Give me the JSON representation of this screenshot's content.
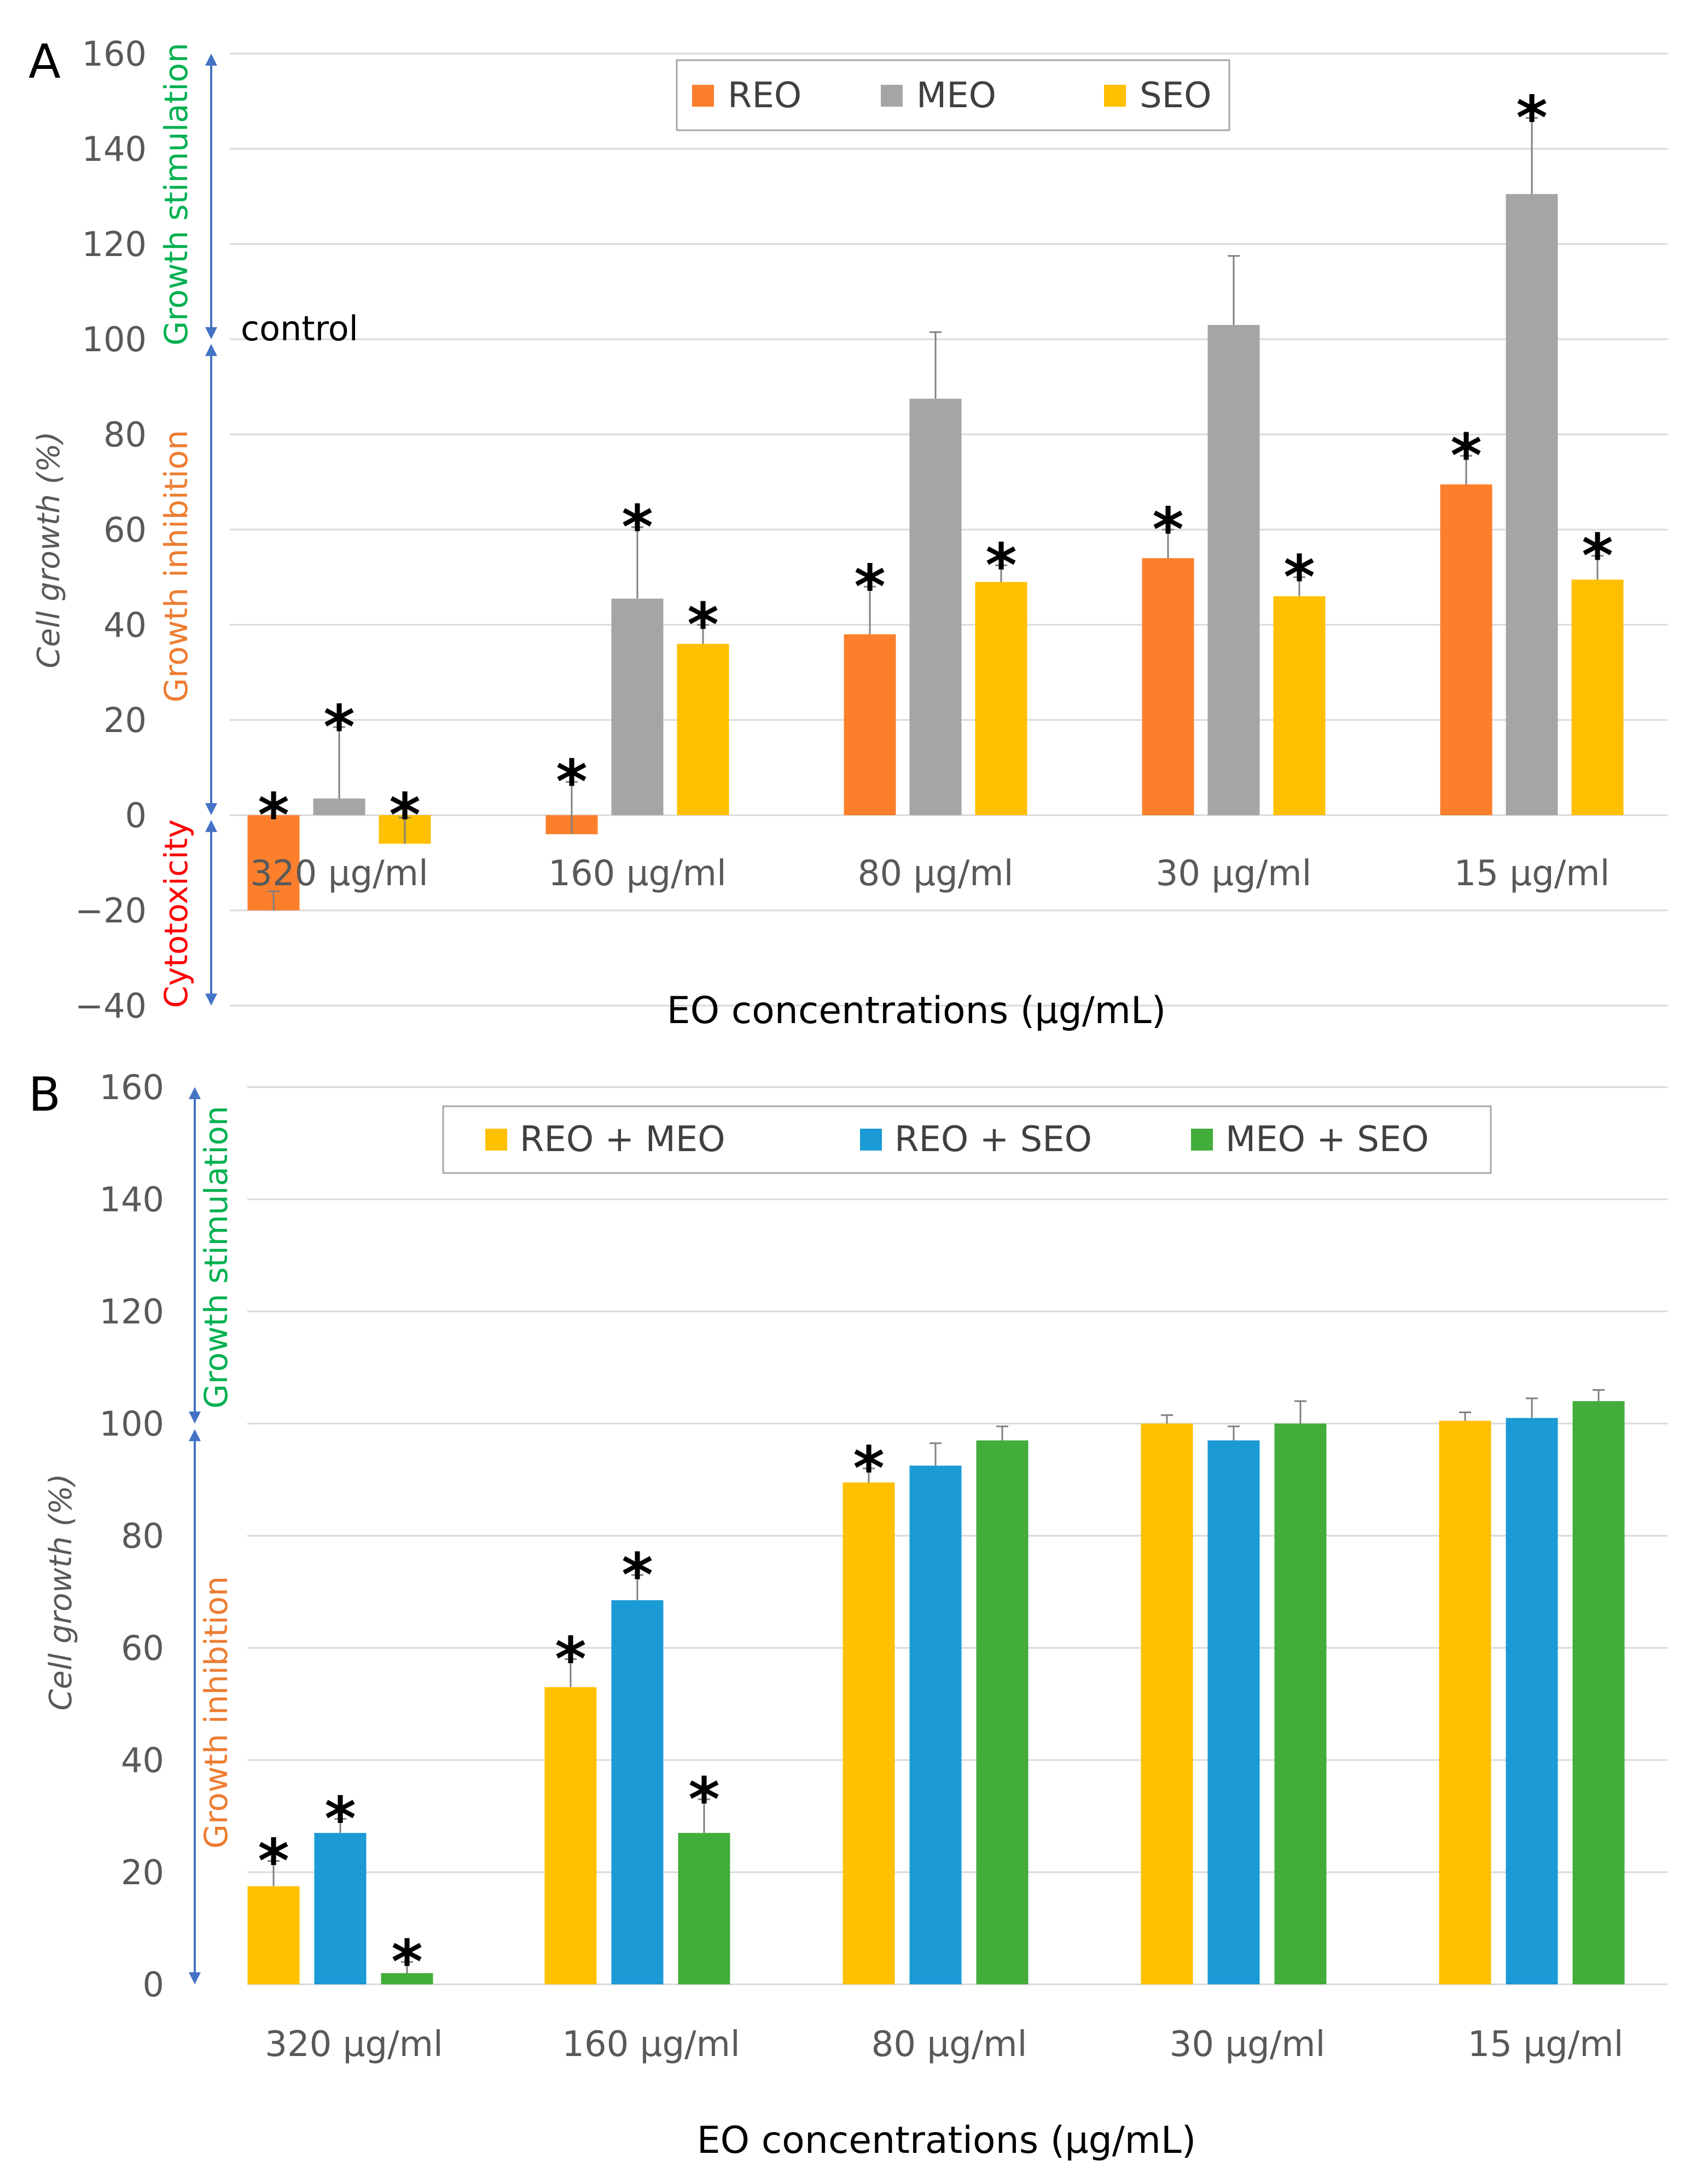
{
  "figure": {
    "colors": {
      "grid": "#d9d9d9",
      "axis_text": "#595959",
      "error_bar": "#808080",
      "arrow": "#4472c4",
      "growth_stimulation": "#00b050",
      "growth_inhibition": "#ed7d31",
      "cytotoxicity": "#ff0000",
      "asterisk": "#000000"
    }
  },
  "chart_data": [
    {
      "panel": "A",
      "type": "bar",
      "xlabel": "EO concentrations (µg/mL)",
      "ylabel": "Cell growth (%)",
      "ylim": [
        -40,
        160
      ],
      "yticks": [
        -40,
        -20,
        0,
        20,
        40,
        60,
        80,
        100,
        120,
        140,
        160
      ],
      "ytick_labels": [
        "−40",
        "−20",
        "0",
        "20",
        "40",
        "60",
        "80",
        "100",
        "120",
        "140",
        "160"
      ],
      "grid": true,
      "legend_position": "top-center",
      "categories": [
        "320 µg/ml",
        "160 µg/ml",
        "80 µg/ml",
        "30 µg/ml",
        "15 µg/ml"
      ],
      "series": [
        {
          "name": "REO",
          "color": "#fd7f2c",
          "values": [
            -20,
            -4,
            38,
            54,
            69.5
          ],
          "errors": [
            4,
            11,
            10,
            6,
            6
          ],
          "significant": [
            true,
            true,
            true,
            true,
            true
          ]
        },
        {
          "name": "MEO",
          "color": "#a5a5a5",
          "values": [
            3.5,
            45.5,
            87.5,
            103,
            130.5
          ],
          "errors": [
            15,
            15,
            14,
            14.5,
            16
          ],
          "significant": [
            true,
            true,
            false,
            false,
            true
          ]
        },
        {
          "name": "SEO",
          "color": "#ffc000",
          "values": [
            -6,
            36,
            49,
            46,
            49.5
          ],
          "errors": [
            5.5,
            4,
            3.5,
            4,
            5
          ],
          "significant": [
            true,
            true,
            true,
            true,
            true
          ]
        }
      ],
      "annotations": {
        "control_label": "control",
        "control_value": 100,
        "bands": [
          {
            "label": "Growth stimulation",
            "color_key": "growth_stimulation",
            "from": 100,
            "to": 160
          },
          {
            "label": "Growth inhibition",
            "color_key": "growth_inhibition",
            "from": 0,
            "to": 100
          },
          {
            "label": "Cytotoxicity",
            "color_key": "cytotoxicity",
            "from": -40,
            "to": 0
          }
        ]
      }
    },
    {
      "panel": "B",
      "type": "bar",
      "xlabel": "EO concentrations (µg/mL)",
      "ylabel": "Cell growth (%)",
      "ylim": [
        0,
        160
      ],
      "yticks": [
        0,
        20,
        40,
        60,
        80,
        100,
        120,
        140,
        160
      ],
      "ytick_labels": [
        "0",
        "20",
        "40",
        "60",
        "80",
        "100",
        "120",
        "140",
        "160"
      ],
      "grid": true,
      "legend_position": "top-center",
      "categories": [
        "320 µg/ml",
        "160 µg/ml",
        "80 µg/ml",
        "30 µg/ml",
        "15 µg/ml"
      ],
      "series": [
        {
          "name": "REO + MEO",
          "color": "#ffc000",
          "values": [
            17.5,
            53,
            89.5,
            100,
            100.5
          ],
          "errors": [
            4.5,
            5,
            2.5,
            1.5,
            1.5
          ],
          "significant": [
            true,
            true,
            true,
            false,
            false
          ]
        },
        {
          "name": "REO + SEO",
          "color": "#1b9ad6",
          "values": [
            27,
            68.5,
            92.5,
            97,
            101
          ],
          "errors": [
            2.5,
            4.5,
            4,
            2.5,
            3.5
          ],
          "significant": [
            true,
            true,
            false,
            false,
            false
          ]
        },
        {
          "name": "MEO + SEO",
          "color": "#43ad3b",
          "values": [
            2,
            27,
            97,
            100,
            104
          ],
          "errors": [
            2,
            6,
            2.5,
            4,
            2
          ],
          "significant": [
            true,
            true,
            false,
            false,
            false
          ]
        }
      ],
      "annotations": {
        "bands": [
          {
            "label": "Growth stimulation",
            "color_key": "growth_stimulation",
            "from": 100,
            "to": 160
          },
          {
            "label": "Growth inhibition",
            "color_key": "growth_inhibition",
            "from": 0,
            "to": 100
          }
        ]
      }
    }
  ]
}
